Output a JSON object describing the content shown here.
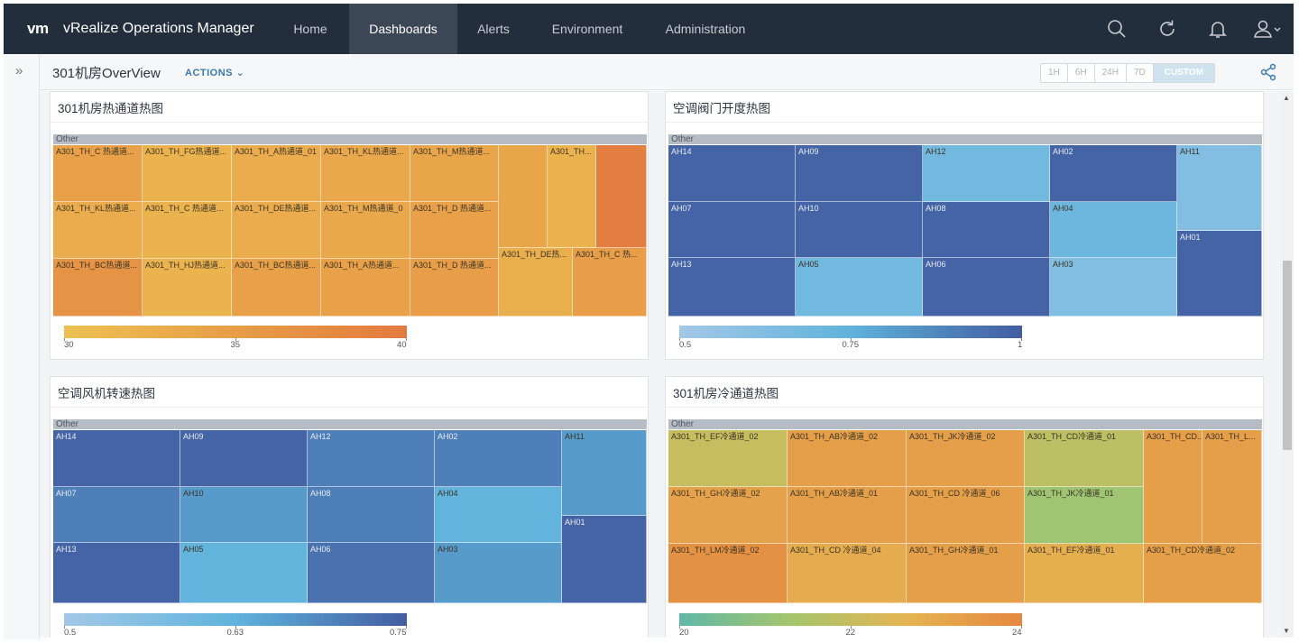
{
  "app": {
    "logo": "vm",
    "title": "vRealize Operations Manager"
  },
  "nav": {
    "items": [
      {
        "label": "Home",
        "active": false
      },
      {
        "label": "Dashboards",
        "active": true
      },
      {
        "label": "Alerts",
        "active": false
      },
      {
        "label": "Environment",
        "active": false
      },
      {
        "label": "Administration",
        "active": false
      }
    ],
    "icons": [
      "search-icon",
      "refresh-icon",
      "bell-icon",
      "user-icon"
    ]
  },
  "subheader": {
    "toggle_glyph": "»",
    "page_title": "301机房OverView",
    "actions_label": "ACTIONS",
    "time_ranges": [
      {
        "label": "1H",
        "active": false
      },
      {
        "label": "6H",
        "active": false
      },
      {
        "label": "24H",
        "active": false
      },
      {
        "label": "7D",
        "active": false
      },
      {
        "label": "CUSTOM",
        "active": true
      }
    ]
  },
  "widgets": [
    {
      "title": "301机房热通道热图",
      "other_label": "Other",
      "palette": "warm",
      "cells": [
        {
          "label": "A301_TH_C 热通道...",
          "value": 34.5
        },
        {
          "label": "A301_TH_FG热通道...",
          "value": 32
        },
        {
          "label": "A301_TH_A热通道_01",
          "value": 33
        },
        {
          "label": "A301_TH_KL热通道...",
          "value": 33.5
        },
        {
          "label": "A301_TH_M热通道...",
          "value": 34
        },
        {
          "label": "",
          "value": 34
        },
        {
          "label": "A301_TH...",
          "value": 32
        },
        {
          "label": "",
          "value": 39.5
        },
        {
          "label": "A301_TH_KL热通道...",
          "value": 33
        },
        {
          "label": "A301_TH_C 热通道...",
          "value": 32
        },
        {
          "label": "A301_TH_DE热通道...",
          "value": 33
        },
        {
          "label": "A301_TH_M热通道_0",
          "value": 33.5
        },
        {
          "label": "A301_TH_D 热通道...",
          "value": 34.5
        },
        {
          "label": "A301_TH_BC热通道...",
          "value": 36.5
        },
        {
          "label": "A301_TH_HJ热通道...",
          "value": 32
        },
        {
          "label": "A301_TH_BC热通道...",
          "value": 34.5
        },
        {
          "label": "A301_TH_A热通道...",
          "value": 34.5
        },
        {
          "label": "A301_TH_D 热通道...",
          "value": 35
        },
        {
          "label": "A301_TH_DE热...",
          "value": 32.5
        },
        {
          "label": "A301_TH_C 热...",
          "value": 35
        }
      ],
      "legend": {
        "min": 30,
        "max": 40,
        "ticks": [
          "30",
          "35",
          "40"
        ],
        "colors": [
          "#edc151",
          "#e27a3f"
        ]
      }
    },
    {
      "title": "空调阀门开度热图",
      "other_label": "Other",
      "palette": "cool",
      "cells": [
        {
          "label": "AH14",
          "value": 0.98
        },
        {
          "label": "AH09",
          "value": 0.98
        },
        {
          "label": "AH12",
          "value": 0.68
        },
        {
          "label": "AH02",
          "value": 0.98
        },
        {
          "label": "AH11",
          "value": 0.62
        },
        {
          "label": "AH07",
          "value": 0.98
        },
        {
          "label": "AH10",
          "value": 0.98
        },
        {
          "label": "AH08",
          "value": 0.98
        },
        {
          "label": "AH04",
          "value": 0.7
        },
        {
          "label": "AH01",
          "value": 0.98
        },
        {
          "label": "AH13",
          "value": 0.98
        },
        {
          "label": "AH05",
          "value": 0.68
        },
        {
          "label": "AH06",
          "value": 0.98
        },
        {
          "label": "AH03",
          "value": 0.62
        }
      ],
      "legend": {
        "min": 0.5,
        "max": 1,
        "ticks": [
          "0.5",
          "0.75",
          "1"
        ],
        "colors": [
          "#a3c8e6",
          "#5fb3dc",
          "#435da0"
        ]
      }
    },
    {
      "title": "空调风机转速热图",
      "other_label": "Other",
      "palette": "cool",
      "cells": [
        {
          "label": "AH14",
          "value": 0.74
        },
        {
          "label": "AH09",
          "value": 0.74
        },
        {
          "label": "AH12",
          "value": 0.7
        },
        {
          "label": "AH02",
          "value": 0.7
        },
        {
          "label": "AH11",
          "value": 0.66
        },
        {
          "label": "AH07",
          "value": 0.7
        },
        {
          "label": "AH10",
          "value": 0.66
        },
        {
          "label": "AH08",
          "value": 0.7
        },
        {
          "label": "AH04",
          "value": 0.62
        },
        {
          "label": "AH01",
          "value": 0.74
        },
        {
          "label": "AH13",
          "value": 0.74
        },
        {
          "label": "AH05",
          "value": 0.62
        },
        {
          "label": "AH06",
          "value": 0.72
        },
        {
          "label": "AH03",
          "value": 0.66
        }
      ],
      "legend": {
        "min": 0.5,
        "max": 0.75,
        "ticks": [
          "0.5",
          "0.63",
          "0.75"
        ],
        "colors": [
          "#a3c8e6",
          "#5fb3dc",
          "#435da0"
        ]
      }
    },
    {
      "title": "301机房冷通道热图",
      "other_label": "Other",
      "palette": "mixed",
      "cells": [
        {
          "label": "A301_TH_EF冷通道_02",
          "value": 22
        },
        {
          "label": "A301_TH_AB冷通道_02",
          "value": 23.3
        },
        {
          "label": "A301_TH_JK冷通道_02",
          "value": 23.3
        },
        {
          "label": "A301_TH_CD冷通道_01",
          "value": 21.8
        },
        {
          "label": "A301_TH_CD...",
          "value": 23.3
        },
        {
          "label": "A301_TH_L...",
          "value": 23.3
        },
        {
          "label": "A301_TH_GH冷通道_02",
          "value": 23.2
        },
        {
          "label": "A301_TH_AB冷通道_01",
          "value": 23.3
        },
        {
          "label": "A301_TH_CD 冷通道_06",
          "value": 23.3
        },
        {
          "label": "A301_TH_JK冷通道_01",
          "value": 21.2
        },
        {
          "label": "A301_TH_LM冷通道_02",
          "value": 23.7
        },
        {
          "label": "A301_TH_CD 冷通道_04",
          "value": 22.9
        },
        {
          "label": "A301_TH_GH冷通道_01",
          "value": 23.3
        },
        {
          "label": "A301_TH_EF冷通道_01",
          "value": 22.8
        },
        {
          "label": "A301_TH_CD冷通道_02",
          "value": 23.3
        }
      ],
      "legend": {
        "min": 20,
        "max": 24,
        "ticks": [
          "20",
          "22",
          "24"
        ],
        "colors": [
          "#5fb8a6",
          "#a6c56c",
          "#e5b452",
          "#e5873f"
        ]
      }
    }
  ]
}
